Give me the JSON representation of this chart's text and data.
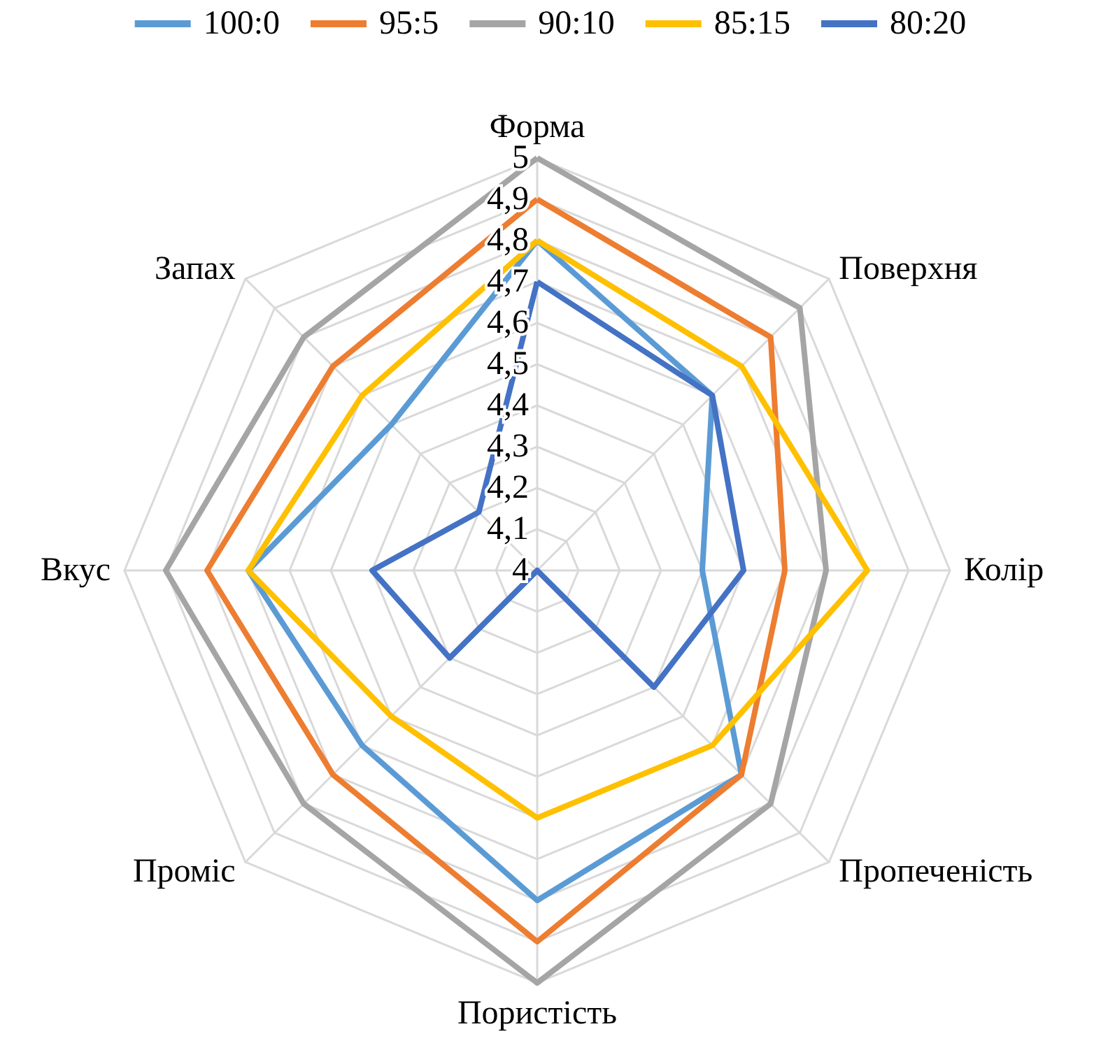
{
  "chart_data": {
    "type": "radar",
    "categories": [
      "Форма",
      "Поверхня",
      "Колір",
      "Пропеченість",
      "Пористість",
      "Проміс",
      "Вкус",
      "Запах"
    ],
    "ylim": [
      4,
      5
    ],
    "yticks": [
      4,
      {
        "value": 4.1,
        "label": "4,1"
      },
      {
        "value": 4.2,
        "label": "4,2"
      },
      {
        "value": 4.3,
        "label": "4,3"
      },
      {
        "value": 4.4,
        "label": "4,4"
      },
      {
        "value": 4.5,
        "label": "4,5"
      },
      {
        "value": 4.6,
        "label": "4,6"
      },
      {
        "value": 4.7,
        "label": "4,7"
      },
      {
        "value": 4.8,
        "label": "4,8"
      },
      {
        "value": 4.9,
        "label": "4,9"
      },
      5
    ],
    "legend": "top",
    "grid": true,
    "series": [
      {
        "name": "100:0",
        "color": "#5b9bd5",
        "values": [
          4.8,
          4.6,
          4.4,
          4.7,
          4.8,
          4.6,
          4.7,
          4.5
        ]
      },
      {
        "name": "95:5",
        "color": "#ed7d31",
        "values": [
          4.9,
          4.8,
          4.6,
          4.7,
          4.9,
          4.7,
          4.8,
          4.7
        ]
      },
      {
        "name": "90:10",
        "color": "#a5a5a5",
        "values": [
          5,
          4.9,
          4.7,
          4.8,
          5,
          4.8,
          4.9,
          4.8
        ]
      },
      {
        "name": "85:15",
        "color": "#ffc000",
        "values": [
          4.8,
          4.7,
          4.8,
          4.6,
          4.6,
          4.5,
          4.7,
          4.6
        ]
      },
      {
        "name": "80:20",
        "color": "#4472c4",
        "values": [
          4.7,
          4.6,
          4.5,
          4.4,
          4,
          4.3,
          4.4,
          4.2
        ]
      }
    ]
  }
}
